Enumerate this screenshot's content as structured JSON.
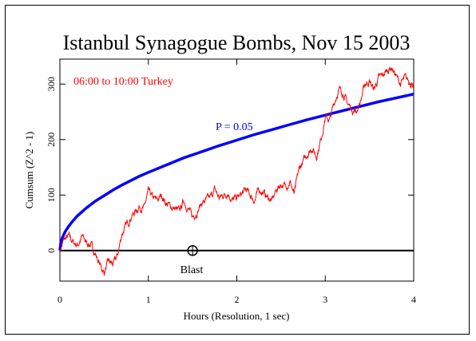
{
  "chart_data": {
    "type": "line",
    "title": "Istanbul Synagogue Bombs, Nov 15 2003",
    "xlabel": "Hours (Resolution, 1 sec)",
    "ylabel": "Cumsum (Z^2 - 1)",
    "xlim": [
      0,
      4
    ],
    "ylim": [
      -55,
      345
    ],
    "x_ticks": [
      0,
      1,
      2,
      3,
      4
    ],
    "y_ticks": [
      0,
      100,
      200,
      300
    ],
    "grid": false,
    "annotation": "06:00 to 10:00 Turkey",
    "series": [
      {
        "type": "cumsum",
        "color": "#ff0000",
        "x": [
          0.0,
          0.05,
          0.1,
          0.15,
          0.2,
          0.25,
          0.3,
          0.35,
          0.4,
          0.45,
          0.5,
          0.55,
          0.6,
          0.65,
          0.7,
          0.75,
          0.8,
          0.85,
          0.9,
          0.95,
          1.0,
          1.05,
          1.1,
          1.15,
          1.2,
          1.25,
          1.3,
          1.35,
          1.4,
          1.45,
          1.5,
          1.55,
          1.6,
          1.65,
          1.7,
          1.75,
          1.8,
          1.85,
          1.9,
          1.95,
          2.0,
          2.05,
          2.1,
          2.15,
          2.2,
          2.25,
          2.3,
          2.35,
          2.4,
          2.45,
          2.5,
          2.55,
          2.6,
          2.65,
          2.7,
          2.75,
          2.8,
          2.85,
          2.9,
          2.95,
          3.0,
          3.05,
          3.1,
          3.15,
          3.2,
          3.25,
          3.3,
          3.35,
          3.4,
          3.45,
          3.5,
          3.55,
          3.6,
          3.65,
          3.7,
          3.75,
          3.8,
          3.85,
          3.9,
          3.95,
          4.0
        ],
        "values": [
          0,
          20,
          25,
          15,
          10,
          25,
          15,
          10,
          -5,
          -25,
          -40,
          -20,
          -25,
          -10,
          30,
          45,
          60,
          70,
          80,
          75,
          105,
          95,
          90,
          100,
          85,
          80,
          75,
          70,
          90,
          75,
          60,
          70,
          85,
          90,
          95,
          110,
          95,
          100,
          105,
          90,
          95,
          100,
          110,
          100,
          90,
          110,
          105,
          95,
          90,
          110,
          120,
          115,
          125,
          100,
          145,
          160,
          175,
          185,
          170,
          200,
          240,
          235,
          265,
          290,
          285,
          265,
          255,
          250,
          270,
          300,
          305,
          290,
          310,
          315,
          325,
          330,
          315,
          300,
          310,
          305,
          300
        ]
      },
      {
        "name": "P = 0.05",
        "type": "threshold",
        "color": "#0000ff",
        "x": [
          0.0,
          0.01,
          0.03,
          0.06,
          0.1,
          0.15,
          0.2,
          0.3,
          0.4,
          0.5,
          0.6,
          0.7,
          0.8,
          0.9,
          1.0,
          1.2,
          1.4,
          1.6,
          1.8,
          2.0,
          2.2,
          2.4,
          2.6,
          2.8,
          3.0,
          3.2,
          3.4,
          3.6,
          3.8,
          4.0
        ],
        "values": [
          0,
          14,
          24,
          34,
          44,
          54,
          63,
          77,
          89,
          99,
          109,
          118,
          126,
          134,
          141,
          154,
          167,
          178,
          189,
          199,
          209,
          218,
          227,
          236,
          244,
          252,
          260,
          268,
          275,
          282
        ]
      }
    ],
    "labels": {
      "p_line": "P = 0.05",
      "event": "Blast"
    },
    "event_x": 1.5,
    "event_y": 0
  }
}
